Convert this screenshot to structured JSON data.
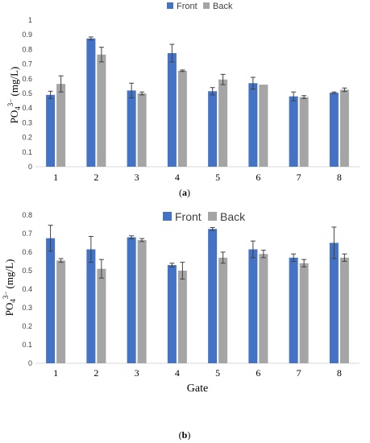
{
  "chart_data": [
    {
      "type": "bar",
      "panel": "a",
      "panel_label": [
        "(",
        "a",
        ")"
      ],
      "categories": [
        "1",
        "2",
        "3",
        "4",
        "5",
        "6",
        "7",
        "8"
      ],
      "series": [
        {
          "name": "Front",
          "color": "#4472c4",
          "values": [
            0.49,
            0.875,
            0.52,
            0.775,
            0.515,
            0.57,
            0.48,
            0.505
          ],
          "errors": [
            0.025,
            0.01,
            0.05,
            0.06,
            0.025,
            0.04,
            0.03,
            0.005
          ]
        },
        {
          "name": "Back",
          "color": "#a5a5a5",
          "values": [
            0.565,
            0.765,
            0.5,
            0.655,
            0.595,
            0.56,
            0.475,
            0.525
          ],
          "errors": [
            0.055,
            0.05,
            0.01,
            0.005,
            0.035,
            0.0,
            0.01,
            0.012
          ]
        }
      ],
      "ylim": [
        0,
        1
      ],
      "yticks": [
        "0",
        "0.1",
        "0.2",
        "0.3",
        "0.4",
        "0.5",
        "0.6",
        "0.7",
        "0.8",
        "0.9",
        "1"
      ],
      "ylabel": {
        "base": "PO",
        "sub": "4",
        "sup": "3−",
        "unit": "(mg/L)"
      },
      "xlabel": "",
      "legend": "top-center",
      "grid": false
    },
    {
      "type": "bar",
      "panel": "b",
      "panel_label": [
        "(",
        "b",
        ")"
      ],
      "categories": [
        "1",
        "2",
        "3",
        "4",
        "5",
        "6",
        "7",
        "8"
      ],
      "series": [
        {
          "name": "Front",
          "color": "#4472c4",
          "values": [
            0.675,
            0.615,
            0.68,
            0.53,
            0.725,
            0.615,
            0.57,
            0.65
          ],
          "errors": [
            0.07,
            0.07,
            0.008,
            0.01,
            0.008,
            0.045,
            0.02,
            0.085
          ]
        },
        {
          "name": "Back",
          "color": "#a5a5a5",
          "values": [
            0.555,
            0.51,
            0.665,
            0.5,
            0.57,
            0.59,
            0.54,
            0.57
          ],
          "errors": [
            0.01,
            0.05,
            0.008,
            0.045,
            0.03,
            0.02,
            0.02,
            0.02
          ]
        }
      ],
      "ylim": [
        0,
        0.8
      ],
      "yticks": [
        "0",
        "0.1",
        "0.2",
        "0.3",
        "0.4",
        "0.5",
        "0.6",
        "0.7",
        "0.8"
      ],
      "ylabel": {
        "base": "PO",
        "sub": "4",
        "sup": "3−",
        "unit": "(mg/L)"
      },
      "xlabel": "Gate",
      "legend": "top-center",
      "grid": false
    }
  ]
}
